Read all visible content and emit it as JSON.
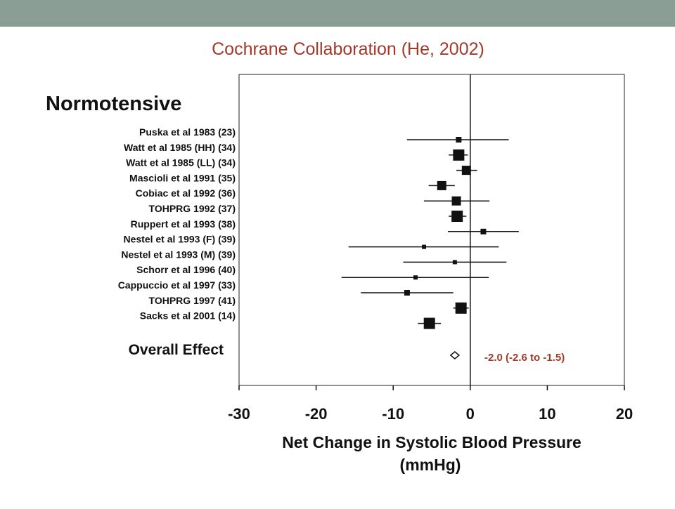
{
  "slide": {
    "title": "Cochrane Collaboration  (He, 2002)",
    "bar_color": "#8a9e95",
    "title_color": "#a23a2a"
  },
  "chart_data": {
    "type": "forest",
    "panel_label": "Normotensive",
    "xlabel_line1": "Net Change in Systolic Blood Pressure",
    "xlabel_line2": "(mmHg)",
    "xlim": [
      -30,
      20
    ],
    "xticks": [
      -30,
      -20,
      -10,
      0,
      10,
      20
    ],
    "studies": [
      {
        "label": "Puska et al 1983 (23)",
        "estimate": -1.5,
        "lower": -8.2,
        "upper": 5.0,
        "weight": "small"
      },
      {
        "label": "Watt et al 1985 (HH) (34)",
        "estimate": -1.5,
        "lower": -2.8,
        "upper": -0.3,
        "weight": "large"
      },
      {
        "label": "Watt et al 1985 (LL) (34)",
        "estimate": -0.5,
        "lower": -1.8,
        "upper": 0.9,
        "weight": "medium"
      },
      {
        "label": "Mascioli et al 1991 (35)",
        "estimate": -3.7,
        "lower": -5.4,
        "upper": -2.0,
        "weight": "medium"
      },
      {
        "label": "Cobiac et al 1992 (36)",
        "estimate": -1.8,
        "lower": -6.0,
        "upper": 2.5,
        "weight": "medium"
      },
      {
        "label": "TOHPRG 1992 (37)",
        "estimate": -1.7,
        "lower": -2.8,
        "upper": -0.5,
        "weight": "large"
      },
      {
        "label": "Ruppert et al 1993 (38)",
        "estimate": 1.7,
        "lower": -2.9,
        "upper": 6.3,
        "weight": "small"
      },
      {
        "label": "Nestel et al 1993 (F) (39)",
        "estimate": -6.0,
        "lower": -15.8,
        "upper": 3.7,
        "weight": "xsmall"
      },
      {
        "label": "Nestel et al 1993 (M) (39)",
        "estimate": -2.0,
        "lower": -8.7,
        "upper": 4.7,
        "weight": "xsmall"
      },
      {
        "label": "Schorr et al 1996 (40)",
        "estimate": -7.1,
        "lower": -16.7,
        "upper": 2.4,
        "weight": "xsmall"
      },
      {
        "label": "Cappuccio et al 1997 (33)",
        "estimate": -8.2,
        "lower": -14.2,
        "upper": -2.2,
        "weight": "small"
      },
      {
        "label": "TOHPRG 1997 (41)",
        "estimate": -1.2,
        "lower": -2.2,
        "upper": -0.2,
        "weight": "large"
      },
      {
        "label": "Sacks et al 2001 (14)",
        "estimate": -5.3,
        "lower": -6.8,
        "upper": -3.8,
        "weight": "large"
      }
    ],
    "overall": {
      "label": "Overall Effect",
      "estimate": -2.0,
      "lower": -2.6,
      "upper": -1.5,
      "annotation": "-2.0 (-2.6 to -1.5)",
      "annotation_color": "#a23a2a"
    }
  }
}
